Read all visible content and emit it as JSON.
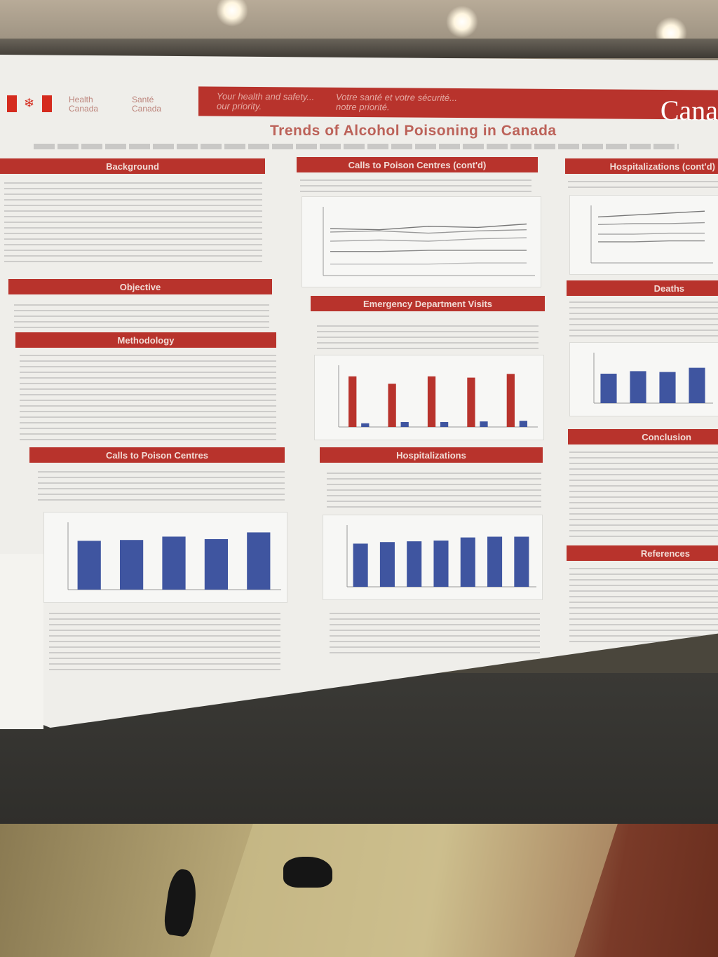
{
  "poster": {
    "title": "Trends of Alcohol Poisoning in Canada",
    "dept_en": "Health Canada",
    "dept_fr": "Santé Canada",
    "tagline_en": "Your health and safety... our priority.",
    "tagline_fr": "Votre santé et votre sécurité... notre priorité.",
    "wordmark": "Cana"
  },
  "sections": {
    "background": "Background",
    "objective": "Objective",
    "methodology": "Methodology",
    "calls": "Calls to Poison Centres",
    "calls_cont": "Calls to Poison Centres (cont'd)",
    "ed_visits": "Emergency Department Visits",
    "hospitalizations": "Hospitalizations",
    "hospitalizations_cont": "Hospitalizations (cont'd)",
    "deaths": "Deaths",
    "conclusion": "Conclusion",
    "references": "References"
  },
  "colors": {
    "banner_red": "#b8332c",
    "bar_blue": "#3f55a0",
    "bar_red": "#b8332c",
    "poster_bg": "#efeeea"
  },
  "chart_data": [
    {
      "type": "bar",
      "values": [
        5.8,
        5.9,
        6.3,
        6.0,
        6.8
      ],
      "ylim": [
        0,
        8
      ]
    },
    {
      "type": "bar",
      "series": [
        {
          "values": [
            8.2,
            7.0,
            8.2,
            8.0,
            8.6
          ]
        },
        {
          "values": [
            0.6,
            0.8,
            0.8,
            0.9,
            1.0
          ]
        }
      ],
      "ylim": [
        0,
        10
      ]
    },
    {
      "type": "bar",
      "values": [
        5.6,
        5.8,
        5.9,
        6.0,
        6.4,
        6.5,
        6.5
      ],
      "ylim": [
        0,
        8
      ]
    },
    {
      "type": "bar",
      "values": [
        3.5,
        3.8,
        3.7,
        4.2
      ],
      "ylim": [
        0,
        6
      ]
    },
    {
      "type": "line",
      "series": [
        {
          "values": [
            4.1,
            4.0,
            4.3,
            4.2,
            4.5
          ]
        },
        {
          "values": [
            3.8,
            3.9,
            3.7,
            3.9,
            4.0
          ]
        },
        {
          "values": [
            3.0,
            3.1,
            3.0,
            3.2,
            3.3
          ]
        },
        {
          "values": [
            2.1,
            2.1,
            2.2,
            2.2,
            2.2
          ]
        },
        {
          "values": [
            1.0,
            1.0,
            1.0,
            1.1,
            1.1
          ]
        }
      ],
      "ylim": [
        0,
        6
      ]
    },
    {
      "type": "line",
      "series": [
        {
          "values": [
            4.8,
            5.0,
            5.2,
            5.4
          ]
        },
        {
          "values": [
            4.0,
            4.1,
            4.1,
            4.2
          ]
        },
        {
          "values": [
            3.0,
            3.0,
            3.1,
            3.1
          ]
        },
        {
          "values": [
            2.2,
            2.2,
            2.3,
            2.3
          ]
        }
      ],
      "ylim": [
        0,
        6
      ]
    }
  ]
}
